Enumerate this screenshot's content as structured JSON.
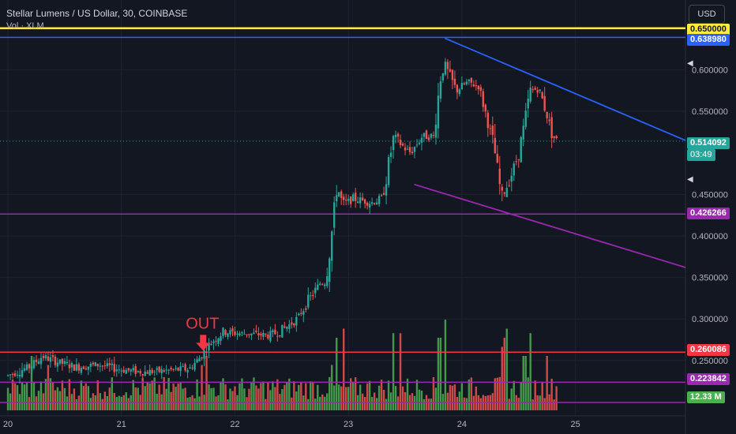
{
  "header": {
    "title": "Stellar Lumens / US Dollar, 30, COINBASE",
    "volume_label": "Vol · XLM"
  },
  "currency_button": "USD",
  "annotation_text": "OUT",
  "price_tags": {
    "yellow_line": "0.650000",
    "blue_line": "0.638980",
    "current_price": "0.514092",
    "countdown": "03:49",
    "purple_upper": "0.426266",
    "red_line": "0.260086",
    "purple_lower": "0.223842",
    "volume": "12.33 M"
  },
  "colors": {
    "background": "#131722",
    "up": "#26a69a",
    "down": "#ef5350",
    "volume_up": "#4caf50",
    "volume_down": "#ef5350",
    "yellow_line": "#ffeb3b",
    "blue_line": "#2962ff",
    "purple_line": "#9c27b0",
    "red_line": "#f23645",
    "annotation": "#f23645"
  },
  "chart_data": {
    "type": "candlestick",
    "title": "Stellar Lumens / US Dollar, 30, COINBASE",
    "x_ticks": [
      "20",
      "21",
      "22",
      "23",
      "24",
      "25"
    ],
    "y_ticks": [
      "0.600000",
      "0.550000",
      "0.450000",
      "0.400000",
      "0.350000",
      "0.300000",
      "0.250000"
    ],
    "ylim": [
      0.19,
      0.665
    ],
    "xlim": [
      19.93,
      25.97
    ],
    "price_path": [
      [
        20.0,
        0.232
      ],
      [
        20.2,
        0.243
      ],
      [
        20.3,
        0.255
      ],
      [
        20.45,
        0.248
      ],
      [
        20.6,
        0.242
      ],
      [
        20.8,
        0.245
      ],
      [
        21.0,
        0.239
      ],
      [
        21.2,
        0.236
      ],
      [
        21.4,
        0.238
      ],
      [
        21.6,
        0.24
      ],
      [
        21.7,
        0.255
      ],
      [
        21.8,
        0.273
      ],
      [
        21.9,
        0.285
      ],
      [
        22.0,
        0.283
      ],
      [
        22.15,
        0.282
      ],
      [
        22.3,
        0.28
      ],
      [
        22.4,
        0.285
      ],
      [
        22.55,
        0.3
      ],
      [
        22.65,
        0.323
      ],
      [
        22.75,
        0.343
      ],
      [
        22.8,
        0.345
      ],
      [
        22.85,
        0.4
      ],
      [
        22.9,
        0.46
      ],
      [
        22.95,
        0.438
      ],
      [
        23.05,
        0.445
      ],
      [
        23.2,
        0.44
      ],
      [
        23.3,
        0.445
      ],
      [
        23.4,
        0.52
      ],
      [
        23.5,
        0.505
      ],
      [
        23.55,
        0.5
      ],
      [
        23.65,
        0.52
      ],
      [
        23.75,
        0.52
      ],
      [
        23.82,
        0.6
      ],
      [
        23.85,
        0.605
      ],
      [
        23.95,
        0.575
      ],
      [
        24.05,
        0.585
      ],
      [
        24.15,
        0.58
      ],
      [
        24.2,
        0.553
      ],
      [
        24.28,
        0.51
      ],
      [
        24.35,
        0.445
      ],
      [
        24.42,
        0.468
      ],
      [
        24.5,
        0.498
      ],
      [
        24.55,
        0.535
      ],
      [
        24.6,
        0.575
      ],
      [
        24.68,
        0.577
      ],
      [
        24.75,
        0.545
      ],
      [
        24.8,
        0.52
      ],
      [
        24.85,
        0.513
      ]
    ],
    "horizontal_lines": [
      {
        "price": 0.65,
        "label": "0.650000"
      },
      {
        "price": 0.63898,
        "label": "0.638980"
      },
      {
        "price": 0.426266,
        "label": "0.426266"
      },
      {
        "price": 0.260086,
        "label": "0.260086"
      },
      {
        "price": 0.223842,
        "label": "0.223842"
      }
    ],
    "trendlines": [
      {
        "from": [
          23.85,
          0.638
        ],
        "to": [
          25.97,
          0.515
        ]
      },
      {
        "from": [
          23.58,
          0.462
        ],
        "to": [
          25.97,
          0.362
        ]
      }
    ],
    "current_price": 0.514092,
    "annotation": {
      "text": "OUT",
      "x": 21.72,
      "y": 0.26
    }
  }
}
